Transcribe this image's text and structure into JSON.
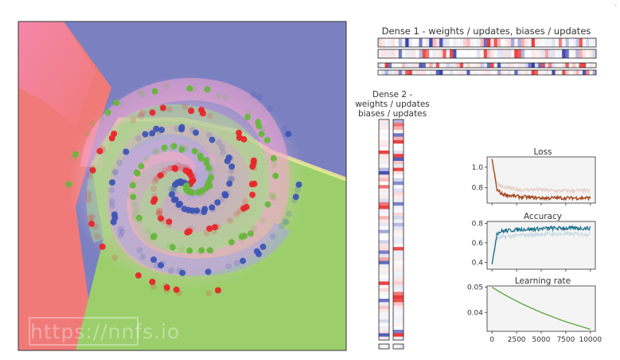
{
  "watermark": "https://nnfs.io",
  "corner_mark": ".",
  "dense1_title": "Dense 1 - weights / updates, biases / updates",
  "dense2_title_lines": [
    "Dense 2 -",
    "weights / updates",
    "biases / updates"
  ],
  "colors": {
    "class_red": "#e8262b",
    "class_blue": "#3d55b5",
    "class_green": "#67b63d",
    "region_red": "#f07a78",
    "region_blue": "#7b80c1",
    "region_green": "#9ccf6c",
    "loss_line": "#a0441a",
    "loss_line_light": "#e6cfc4",
    "acc_line": "#1d6f8a",
    "acc_line_light": "#c7dbe4",
    "lr_line": "#5aa33a",
    "panel_bg": "#f4f4f4"
  },
  "chart_data": [
    {
      "type": "line",
      "title": "Loss",
      "x": [
        0,
        500,
        1000,
        2000,
        3000,
        4000,
        5000,
        6000,
        7000,
        8000,
        9000,
        10000
      ],
      "ylim": [
        0.65,
        1.1
      ],
      "yticks": [
        0.8,
        1.0
      ],
      "series": [
        {
          "values": [
            1.08,
            0.78,
            0.74,
            0.72,
            0.71,
            0.705,
            0.7,
            0.7,
            0.7,
            0.7,
            0.7,
            0.7
          ]
        },
        {
          "values": [
            1.08,
            0.84,
            0.81,
            0.79,
            0.78,
            0.78,
            0.78,
            0.77,
            0.77,
            0.77,
            0.77,
            0.77
          ]
        }
      ]
    },
    {
      "type": "line",
      "title": "Accuracy",
      "x": [
        0,
        500,
        1000,
        2000,
        3000,
        4000,
        5000,
        6000,
        7000,
        8000,
        9000,
        10000
      ],
      "ylim": [
        0.33,
        0.82
      ],
      "yticks": [
        0.4,
        0.6,
        0.8
      ],
      "series": [
        {
          "values": [
            0.38,
            0.7,
            0.72,
            0.73,
            0.74,
            0.74,
            0.745,
            0.75,
            0.75,
            0.75,
            0.75,
            0.75
          ]
        },
        {
          "values": [
            0.38,
            0.64,
            0.66,
            0.67,
            0.68,
            0.68,
            0.69,
            0.69,
            0.69,
            0.69,
            0.69,
            0.69
          ]
        }
      ]
    },
    {
      "type": "line",
      "title": "Learning rate",
      "x": [
        0,
        1000,
        2000,
        3000,
        4000,
        5000,
        6000,
        7000,
        8000,
        9000,
        10000
      ],
      "xlim": [
        -500,
        10500
      ],
      "xticks": [
        0,
        2500,
        5000,
        7500,
        10000
      ],
      "ylim": [
        0.0325,
        0.0505
      ],
      "yticks": [
        0.04,
        0.05
      ],
      "series": [
        {
          "values": [
            0.05,
            0.0476,
            0.0455,
            0.0435,
            0.0417,
            0.04,
            0.0385,
            0.037,
            0.0357,
            0.0345,
            0.0333
          ]
        }
      ]
    }
  ],
  "labels": {
    "loss_y": [
      "0.8",
      "1.0"
    ],
    "acc_y": [
      "0.4",
      "0.6",
      "0.8"
    ],
    "lr_y": [
      "0.04",
      "0.05"
    ],
    "lr_x": [
      "0",
      "2500",
      "5000",
      "7500",
      "10000"
    ]
  }
}
